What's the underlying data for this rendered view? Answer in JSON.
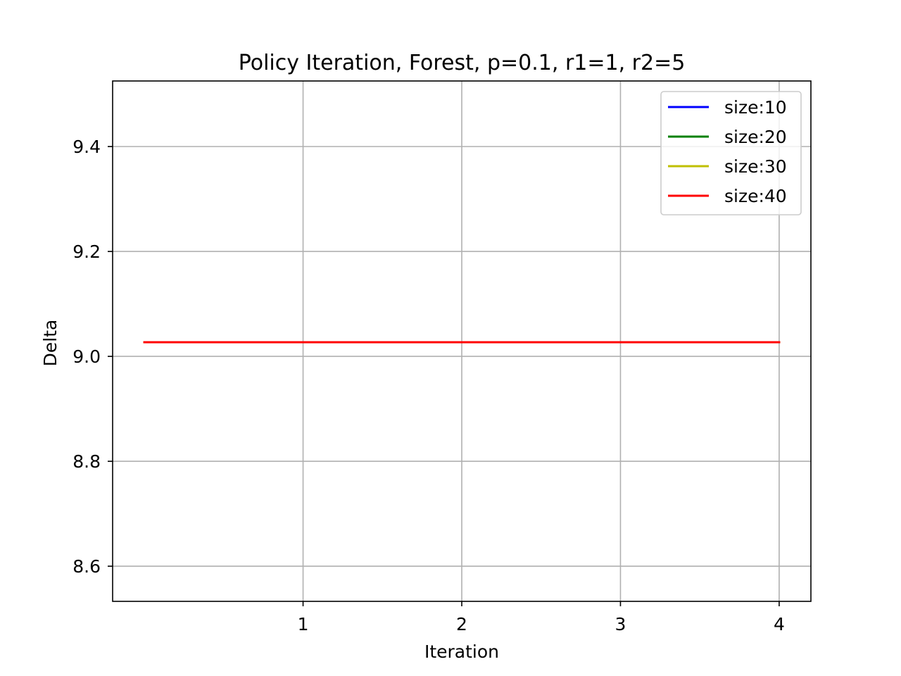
{
  "chart_data": {
    "type": "line",
    "title": "Policy Iteration, Forest, p=0.1, r1=1, r2=5",
    "xlabel": "Iteration",
    "ylabel": "Delta",
    "xlim": [
      -0.2,
      4.2
    ],
    "ylim": [
      8.533,
      9.525
    ],
    "xticks": [
      1,
      2,
      3,
      4
    ],
    "xtick_labels": [
      "1",
      "2",
      "3",
      "4"
    ],
    "yticks": [
      8.6,
      8.8,
      9.0,
      9.2,
      9.4
    ],
    "ytick_labels": [
      "8.6",
      "8.8",
      "9.0",
      "9.2",
      "9.4"
    ],
    "grid": true,
    "legend_position": "upper-right",
    "x": [
      0,
      1,
      2,
      3,
      4
    ],
    "series": [
      {
        "name": "size:10",
        "color": "#0000ff",
        "values": [
          9.027,
          9.027,
          9.027,
          9.027,
          9.027
        ]
      },
      {
        "name": "size:20",
        "color": "#008000",
        "values": [
          9.027,
          9.027,
          9.027,
          9.027,
          9.027
        ]
      },
      {
        "name": "size:30",
        "color": "#bfbf00",
        "values": [
          9.027,
          9.027,
          9.027,
          9.027,
          9.027
        ]
      },
      {
        "name": "size:40",
        "color": "#ff0000",
        "values": [
          9.027,
          9.027,
          9.027,
          9.027,
          9.027
        ]
      }
    ]
  }
}
